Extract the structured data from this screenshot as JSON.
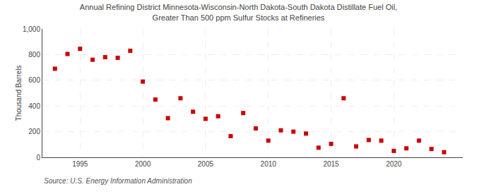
{
  "chart_data": {
    "type": "scatter",
    "title": "Annual Refining District Minnesota-Wisconsin-North Dakota-South Dakota Distillate Fuel Oil,\nGreater Than 500 ppm Sulfur Stocks at Refineries",
    "y_label": "Thousand Barrels",
    "annotations": [
      "Source: U.S. Energy Information Administration"
    ],
    "x": [
      1993,
      1994,
      1995,
      1996,
      1997,
      1998,
      1999,
      2000,
      2001,
      2002,
      2003,
      2004,
      2005,
      2006,
      2007,
      2008,
      2009,
      2010,
      2011,
      2012,
      2013,
      2014,
      2015,
      2016,
      2017,
      2018,
      2019,
      2020,
      2021,
      2022,
      2023,
      2024
    ],
    "values": [
      690,
      805,
      845,
      760,
      780,
      775,
      830,
      590,
      450,
      305,
      460,
      355,
      300,
      320,
      165,
      345,
      225,
      130,
      210,
      200,
      185,
      75,
      105,
      460,
      85,
      135,
      130,
      50,
      70,
      130,
      65,
      40
    ],
    "color": "#cc0000",
    "marker": "square",
    "xlim": [
      1992.0,
      2025.5
    ],
    "xticks": [
      1995,
      2000,
      2005,
      2010,
      2015,
      2020
    ],
    "ylim": [
      0,
      1000
    ],
    "yticks": [
      0,
      200,
      400,
      600,
      800,
      {
        "value": 1000,
        "label": "1,000"
      }
    ],
    "grid": true
  }
}
